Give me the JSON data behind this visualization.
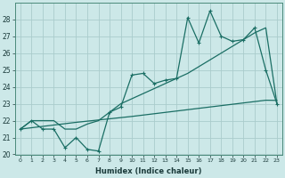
{
  "xlabel": "Humidex (Indice chaleur)",
  "background_color": "#cce8e8",
  "grid_color": "#aacccc",
  "line_color": "#1a6e64",
  "x_values": [
    0,
    1,
    2,
    3,
    4,
    5,
    6,
    7,
    8,
    9,
    10,
    11,
    12,
    13,
    14,
    15,
    16,
    17,
    18,
    19,
    20,
    21,
    22,
    23
  ],
  "y_data": [
    21.5,
    22.0,
    21.5,
    21.5,
    20.4,
    21.0,
    20.3,
    20.2,
    22.5,
    22.8,
    24.7,
    24.8,
    24.2,
    24.4,
    24.5,
    28.1,
    26.6,
    28.5,
    27.0,
    26.7,
    26.8,
    27.5,
    25.0,
    23.0
  ],
  "y_trend_upper": [
    21.5,
    22.0,
    22.0,
    22.0,
    21.5,
    21.5,
    21.8,
    22.0,
    22.5,
    23.0,
    23.3,
    23.6,
    23.9,
    24.2,
    24.5,
    24.8,
    25.2,
    25.6,
    26.0,
    26.4,
    26.8,
    27.2,
    27.5,
    23.0
  ],
  "y_trend_lower": [
    21.5,
    21.58,
    21.66,
    21.74,
    21.82,
    21.9,
    21.97,
    22.04,
    22.11,
    22.18,
    22.25,
    22.33,
    22.41,
    22.49,
    22.57,
    22.65,
    22.73,
    22.81,
    22.89,
    22.97,
    23.05,
    23.13,
    23.21,
    23.2
  ],
  "ylim": [
    20,
    29
  ],
  "yticks": [
    20,
    21,
    22,
    23,
    24,
    25,
    26,
    27,
    28
  ],
  "xlim": [
    -0.5,
    23.5
  ]
}
